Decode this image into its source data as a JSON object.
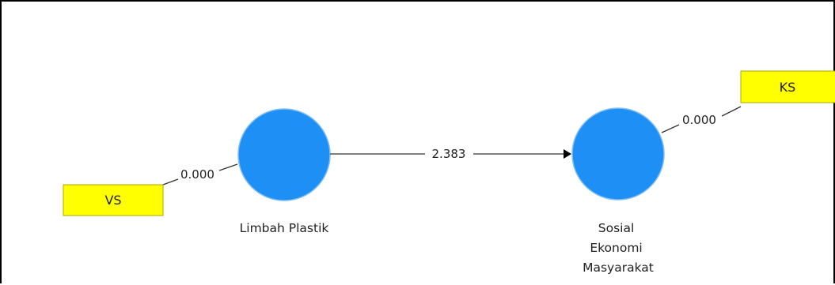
{
  "diagram": {
    "constructs": [
      {
        "id": "lp",
        "label_lines": [
          "Limbah Plastik"
        ]
      },
      {
        "id": "sem",
        "label_lines": [
          "Sosial",
          "Ekonomi",
          "Masyarakat"
        ]
      }
    ],
    "indicators": [
      {
        "id": "vs",
        "label": "VS"
      },
      {
        "id": "ks",
        "label": "KS"
      }
    ],
    "paths": [
      {
        "from": "lp",
        "to": "sem",
        "value": "2.383"
      },
      {
        "from": "vs",
        "to": "lp",
        "value": "0.000"
      },
      {
        "from": "sem",
        "to": "ks",
        "value": "0.000"
      }
    ],
    "colors": {
      "construct_fill": "#1E90F5",
      "construct_stroke": "#7FBFF0",
      "indicator_fill": "#FFFF00",
      "indicator_stroke": "#A8A800",
      "line": "#333333",
      "frame": "#000000"
    }
  }
}
